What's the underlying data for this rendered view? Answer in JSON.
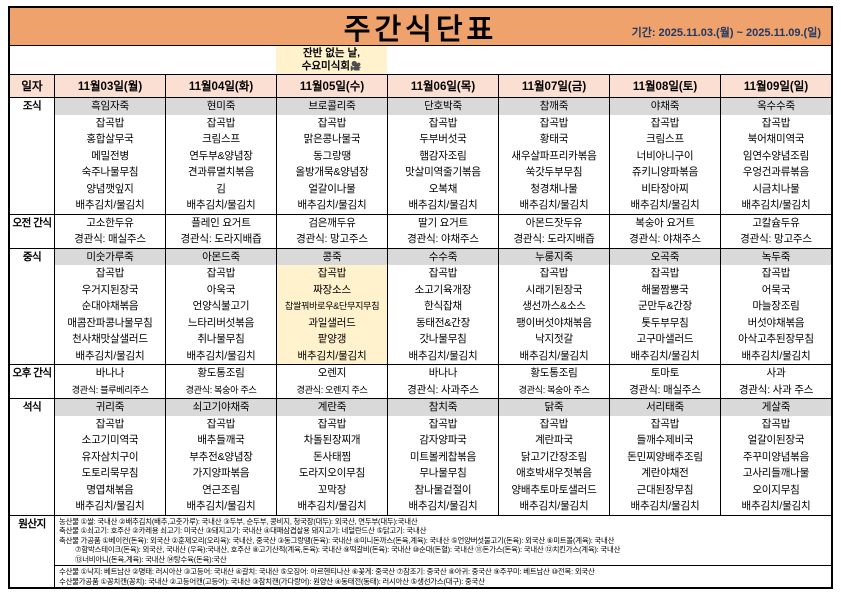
{
  "title": "주간식단표",
  "period": "기간: 2025.11.03.(월) ~ 2025.11.09.(일)",
  "notice": {
    "lines": [
      "잔반 없는 날,",
      "수요미식회"
    ],
    "icon": "🎥",
    "day_index": 2
  },
  "header": {
    "corner": "일자",
    "days": [
      "11월03일(월)",
      "11월04일(화)",
      "11월05일(수)",
      "11월06일(목)",
      "11월07일(금)",
      "11월08일(토)",
      "11월09일(일)"
    ]
  },
  "sections": [
    {
      "label": "조식",
      "shaded_first_line": true,
      "columns": [
        [
          "흑임자죽",
          "잡곡밥",
          "홍합살무국",
          "메밀전병",
          "숙주나물무침",
          "양념깻잎지",
          "배추김치/물김치"
        ],
        [
          "현미죽",
          "잡곡밥",
          "크림스프",
          "연두부&양념장",
          "견과류멸치볶음",
          "김",
          "배추김치/물김치"
        ],
        [
          "브로콜리죽",
          "잡곡밥",
          "맑은콩나물국",
          "동그랑땡",
          "올방개묵&양념장",
          "얼갈이나물",
          "배추김치/물김치"
        ],
        [
          "단호박죽",
          "잡곡밥",
          "두부버섯국",
          "햄감자조림",
          "맛살미역줄기볶음",
          "오복채",
          "배추김치/물김치"
        ],
        [
          "참깨죽",
          "잡곡밥",
          "황태국",
          "새우살파프리카볶음",
          "쑥갓두부무침",
          "청경채나물",
          "배추김치/물김치"
        ],
        [
          "야채죽",
          "잡곡밥",
          "크림스프",
          "너비아니구이",
          "쥬키니양파볶음",
          "비타장아찌",
          "배추김치/물김치"
        ],
        [
          "옥수수죽",
          "잡곡밥",
          "북어채미역국",
          "임연수양념조림",
          "우엉건과류볶음",
          "시금치나물",
          "배추김치/물김치"
        ]
      ]
    },
    {
      "label": "오전 간식",
      "shaded_first_line": false,
      "columns": [
        [
          "고소한두유",
          "경관식: 매실주스"
        ],
        [
          "플레인 요거트",
          "경관식: 도라지배즙"
        ],
        [
          "검은깨두유",
          "경관식: 망고주스"
        ],
        [
          "딸기 요거트",
          "경관식: 야채주스"
        ],
        [
          "아몬드잣두유",
          "경관식: 도라지배즙"
        ],
        [
          "복숭아 요거트",
          "경관식: 야채주스"
        ],
        [
          "고칼슘두유",
          "경관식: 망고주스"
        ]
      ]
    },
    {
      "label": "중식",
      "shaded_first_line": true,
      "highlight_day_index": 2,
      "columns": [
        [
          "미숫가루죽",
          "잡곡밥",
          "우거지된장국",
          "순대야채볶음",
          "매콤잔파콩나물무침",
          "천사채맛살샐러드",
          "배추김치/물김치"
        ],
        [
          "아몬드죽",
          "잡곡밥",
          "아욱국",
          "언양식불고기",
          "느타리버섯볶음",
          "취나물무침",
          "배추김치/물김치"
        ],
        [
          "콩죽",
          "잡곡밥",
          "짜장소스",
          "찹쌀꿔바로우&단무지무침",
          "과일샐러드",
          "팥양갱",
          "배추김치/물김치"
        ],
        [
          "수수죽",
          "잡곡밥",
          "소고기육개장",
          "한식잡채",
          "동태전&간장",
          "갓나물무침",
          "배추김치/물김치"
        ],
        [
          "누룽지죽",
          "잡곡밥",
          "시래기된장국",
          "생선까스&소스",
          "팽이버섯야채볶음",
          "낙지젓갈",
          "배추김치/물김치"
        ],
        [
          "오곡죽",
          "잡곡밥",
          "해물짬뽕국",
          "군만두&간장",
          "톳두부무침",
          "고구마샐러드",
          "배추김치/물김치"
        ],
        [
          "녹두죽",
          "잡곡밥",
          "어묵국",
          "마늘장조림",
          "버섯야채볶음",
          "아삭고추된장무침",
          "배추김치/물김치"
        ]
      ]
    },
    {
      "label": "오후 간식",
      "shaded_first_line": false,
      "columns": [
        [
          "바나나",
          "경관식: 블루베리주스"
        ],
        [
          "황도통조림",
          "경관식: 복숭아 주스"
        ],
        [
          "오렌지",
          "경관식: 오렌지 주스"
        ],
        [
          "바나나",
          "경관식: 사과주스"
        ],
        [
          "황도통조림",
          "경관식: 복숭아 주스"
        ],
        [
          "토마토",
          "경관식: 매실주스"
        ],
        [
          "사과",
          "경관식: 사과 주스"
        ]
      ]
    },
    {
      "label": "석식",
      "shaded_first_line": true,
      "columns": [
        [
          "귀리죽",
          "잡곡밥",
          "소고기미역국",
          "유자삼치구이",
          "도토리묵무침",
          "명엽채볶음",
          "배추김치/물김치"
        ],
        [
          "쇠고기야채죽",
          "잡곡밥",
          "배추들깨국",
          "부추전&양념장",
          "가지양파볶음",
          "연근조림",
          "배추김치/물김치"
        ],
        [
          "계란죽",
          "잡곡밥",
          "차돌된장찌개",
          "돈사태찜",
          "도라지오이무침",
          "꼬막장",
          "배추김치/물김치"
        ],
        [
          "참치죽",
          "잡곡밥",
          "감자양파국",
          "미트볼케찹볶음",
          "무나물무침",
          "참나물겉절이",
          "배추김치/물김치"
        ],
        [
          "닭죽",
          "잡곡밥",
          "계란파국",
          "닭고기간장조림",
          "애호박새우젓볶음",
          "양배추토마토샐러드",
          "배추김치/물김치"
        ],
        [
          "서리태죽",
          "잡곡밥",
          "들깨수제비국",
          "돈민찌양배추조림",
          "계란야채전",
          "근대된장무침",
          "배추김치/물김치"
        ],
        [
          "게살죽",
          "잡곡밥",
          "얼갈이된장국",
          "주꾸미양념볶음",
          "고사리들깨나물",
          "오이지무침",
          "배추김치/물김치"
        ]
      ]
    }
  ],
  "origin": {
    "label": "원산지",
    "groups": [
      {
        "lines": [
          "농산물 ①쌀: 국내산 ②배추김치(배추,고춧가루): 국내산 ③두부, 순두부, 콩비지, 청국장(대두): 외국산, 연두부(대두):국내산",
          "축산물 ①쇠고기: 호주산 ②카레용 쇠고기: 미국산 ③돼지고기: 국내산 ④대패삼겹살용 돼지고기: 네덜란드산 ⑤닭고기: 국내산",
          "축산물 가공품 ①베이컨(돈육): 외국산 ②훈제오리(오리육): 국내산, 중국산 ③동그랑땡(돈육): 국내산 ④미니돈까스(돈육,계육): 국내산 ⑤언양버섯불고기(돈육): 외국산 ⑥미트볼(계육): 국내산",
          "⑦함박스테이크(돈육): 외국산, 국내산 (우육):국내산, 호주산 ⑧고기산적(계육,돈육): 국내산 ⑨떡갈비(돈육): 국내산 ⑩순대(돈혈): 국내산 ⑪돈가스(돈육): 국내산 ⑫치킨가스(계육): 국내산",
          "⑬너비아니(돈육,계육): 국내산 ⑭탕수육(돈육):국산"
        ]
      },
      {
        "lines": [
          "수산물 ①낙지: 베트남산 ②명태: 러시아산 ③고등어: 국내산 ④갈치: 국내산 ⑤오징어: 아르헨티나산 ⑥꽃게: 중국산 ⑦참조기: 중국산 ⑧아귀: 중국산 ⑨주꾸미: 베트남산 ⑩전복: 외국산",
          "수산물가공품 ①꽁치캔(꽁치): 국내산 ②고등어캔(고등어): 국내산 ③참치캔(가다랑어): 원양산 ④동태전(동태): 러시아산 ⑤생선가스(대구): 중국산"
        ]
      }
    ]
  },
  "colors": {
    "title_bg": "#F0A26C",
    "header_bg": "#FBDFD2",
    "shade_bg": "#D9D9D9",
    "highlight_bg": "#FFF2CC",
    "period_text": "#1F3864",
    "border": "#000000"
  }
}
